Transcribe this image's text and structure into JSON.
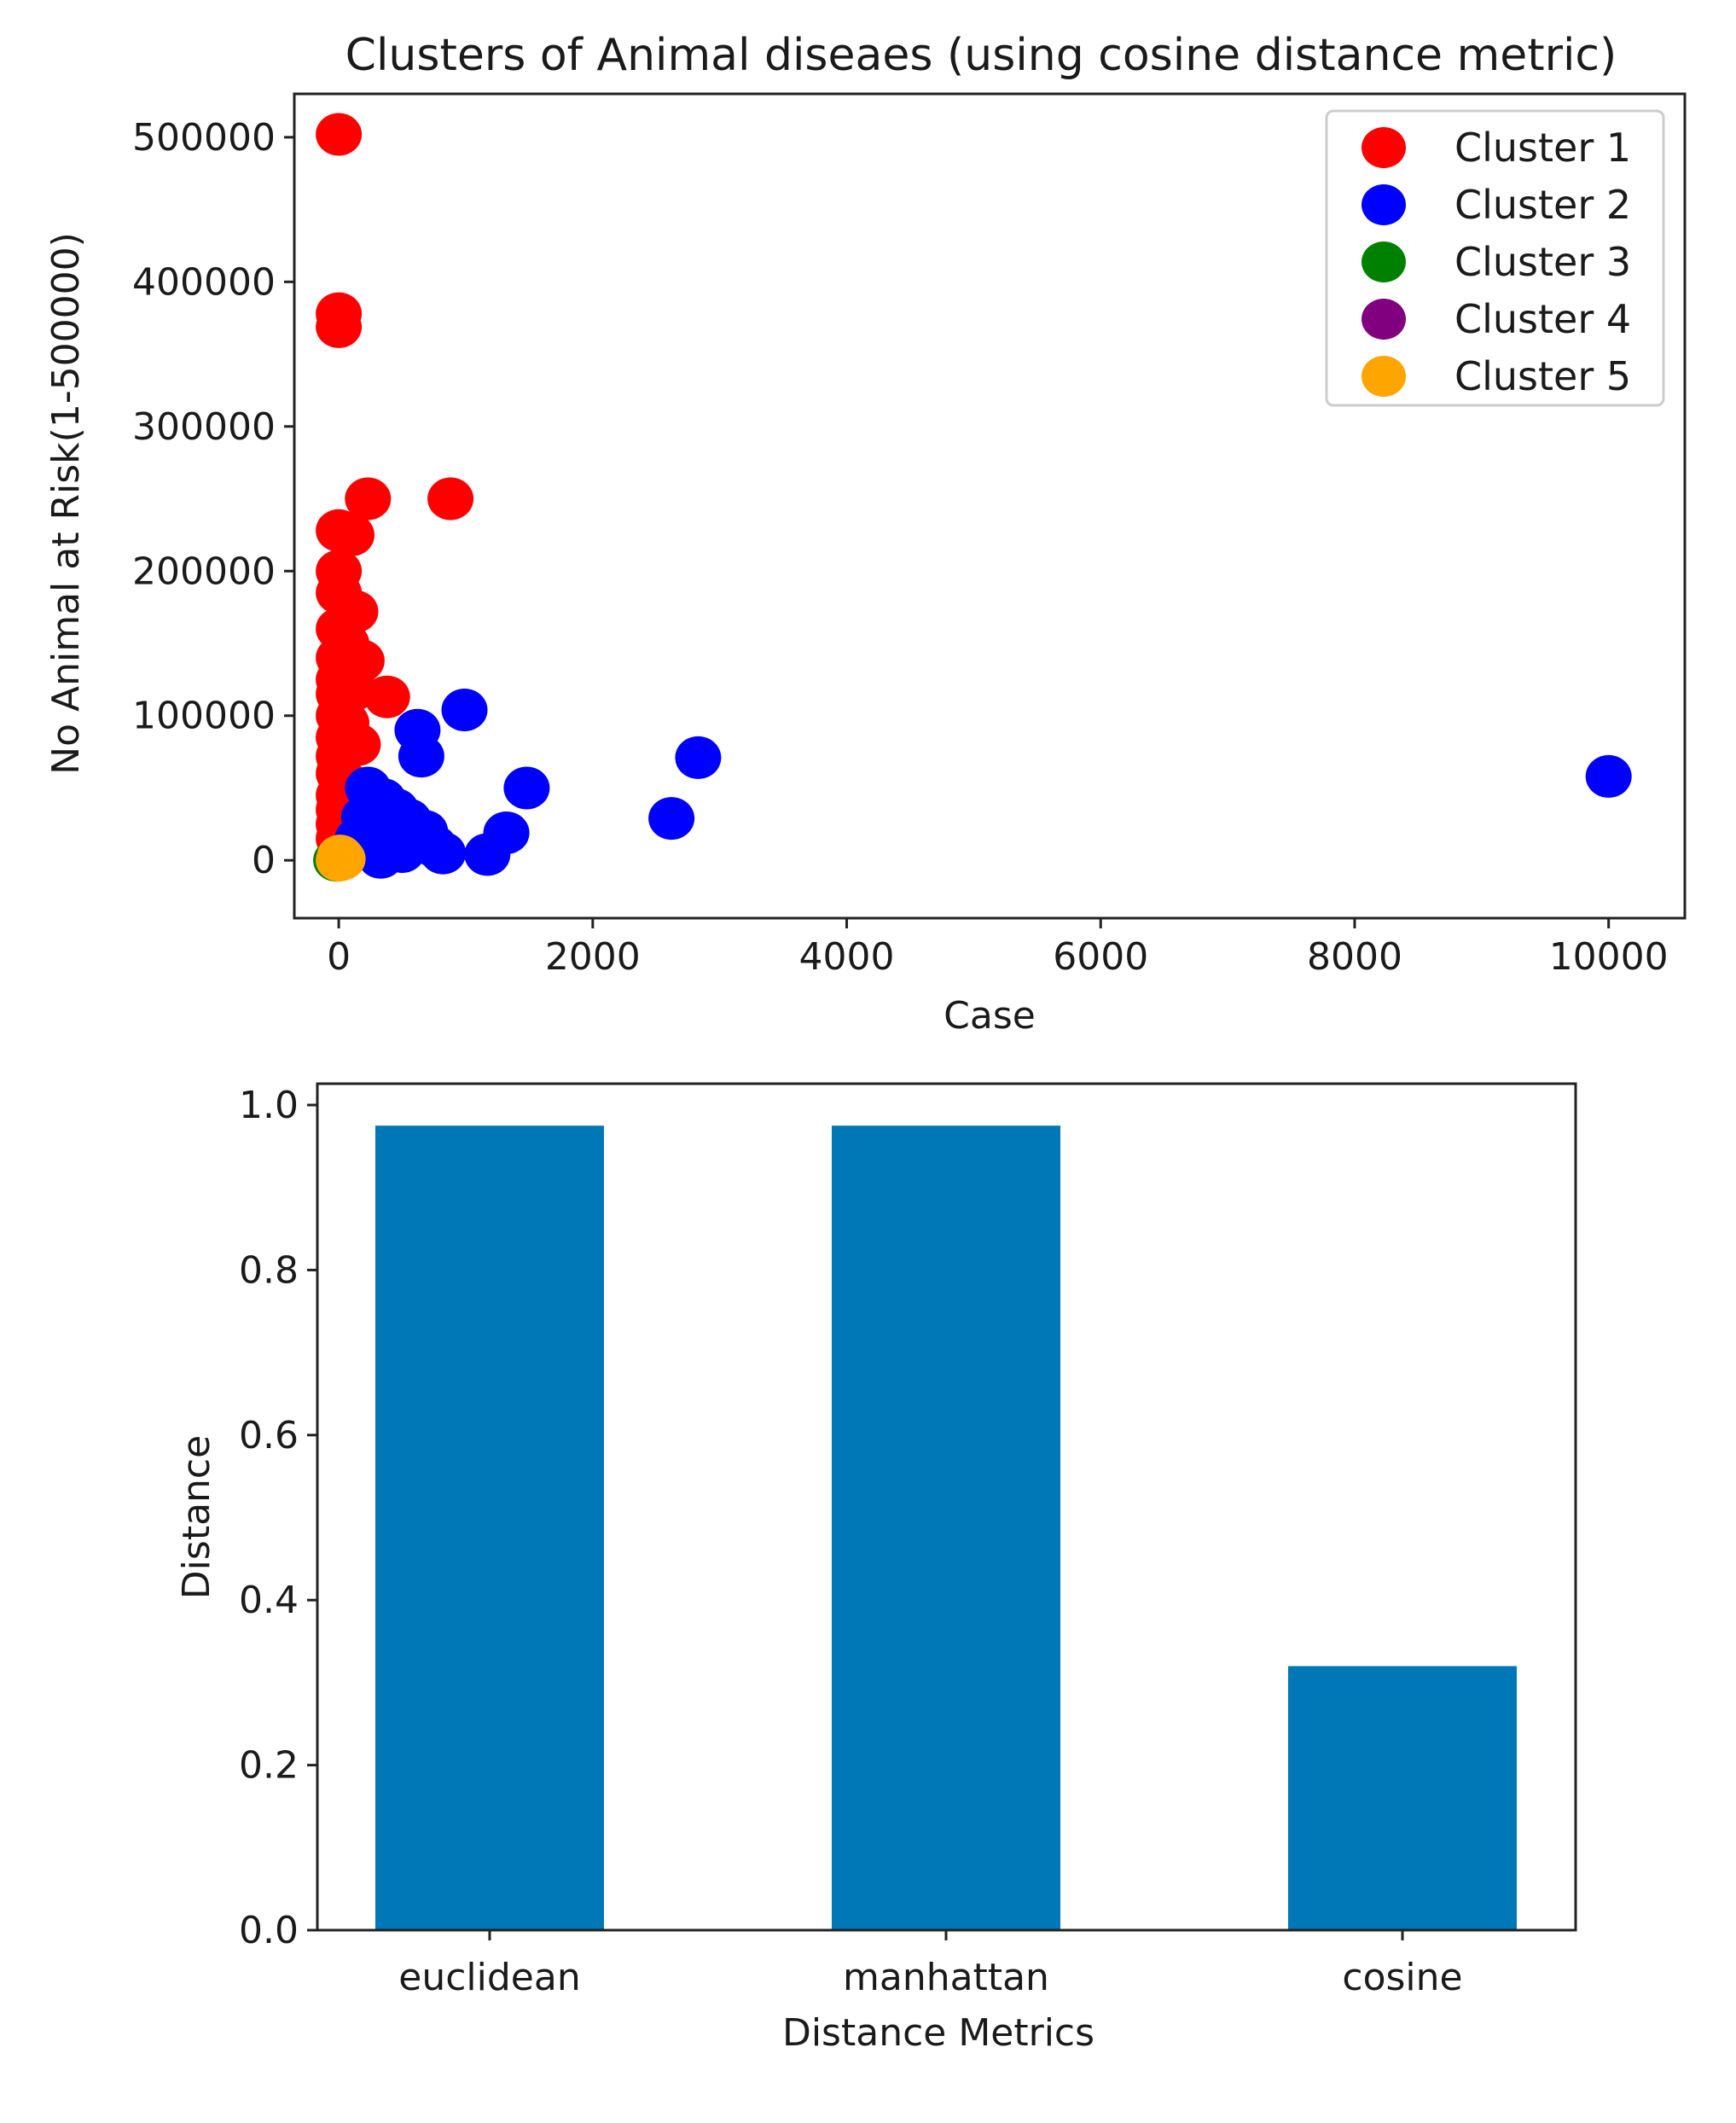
{
  "chart_data": [
    {
      "type": "scatter",
      "title": "Clusters of Animal diseaes (using cosine distance metric)",
      "xlabel": "Case",
      "ylabel": "No Animal at Risk(1-500000)",
      "xlim": [
        -350,
        10600
      ],
      "ylim": [
        -40000,
        530000
      ],
      "xticks": [
        0,
        2000,
        4000,
        6000,
        8000,
        10000
      ],
      "yticks": [
        0,
        100000,
        200000,
        300000,
        400000,
        500000
      ],
      "legend_position": "top-right",
      "series": [
        {
          "name": "Cluster 1",
          "color": "#ff0000",
          "points": [
            [
              0,
              502000
            ],
            [
              0,
              378000
            ],
            [
              0,
              369000
            ],
            [
              230,
              250000
            ],
            [
              880,
              250000
            ],
            [
              0,
              228000
            ],
            [
              100,
              225000
            ],
            [
              0,
              200000
            ],
            [
              0,
              185000
            ],
            [
              130,
              172000
            ],
            [
              0,
              160000
            ],
            [
              60,
              150000
            ],
            [
              0,
              140000
            ],
            [
              180,
              138000
            ],
            [
              0,
              125000
            ],
            [
              0,
              115000
            ],
            [
              120,
              118000
            ],
            [
              380,
              113000
            ],
            [
              0,
              100000
            ],
            [
              60,
              95000
            ],
            [
              0,
              85000
            ],
            [
              150,
              80000
            ],
            [
              0,
              72000
            ],
            [
              0,
              60000
            ],
            [
              40,
              55000
            ],
            [
              0,
              45000
            ],
            [
              0,
              35000
            ],
            [
              0,
              25000
            ],
            [
              0,
              15000
            ]
          ]
        },
        {
          "name": "Cluster 2",
          "color": "#0000ff",
          "points": [
            [
              990,
              104000
            ],
            [
              620,
              90000
            ],
            [
              650,
              72000
            ],
            [
              2830,
              71000
            ],
            [
              10000,
              58000
            ],
            [
              1480,
              50000
            ],
            [
              230,
              50000
            ],
            [
              350,
              42000
            ],
            [
              450,
              35000
            ],
            [
              200,
              30000
            ],
            [
              2620,
              29000
            ],
            [
              550,
              28000
            ],
            [
              280,
              22000
            ],
            [
              680,
              20000
            ],
            [
              1320,
              19000
            ],
            [
              150,
              15000
            ],
            [
              400,
              12000
            ],
            [
              750,
              10000
            ],
            [
              500,
              6000
            ],
            [
              820,
              5000
            ],
            [
              1170,
              4000
            ],
            [
              330,
              2000
            ]
          ]
        },
        {
          "name": "Cluster 3",
          "color": "#008000",
          "points": [
            [
              -20,
              0
            ]
          ]
        },
        {
          "name": "Cluster 4",
          "color": "#800080",
          "points": []
        },
        {
          "name": "Cluster 5",
          "color": "#ffa500",
          "points": [
            [
              10,
              3000
            ],
            [
              30,
              1000
            ],
            [
              0,
              0
            ],
            [
              20,
              2000
            ]
          ]
        }
      ]
    },
    {
      "type": "bar",
      "xlabel": "Distance Metrics",
      "ylabel": "Distance",
      "ylim": [
        0,
        1.0
      ],
      "yticks": [
        "0.0",
        "0.2",
        "0.4",
        "0.6",
        "0.8",
        "1.0"
      ],
      "categories": [
        "euclidean",
        "manhattan",
        "cosine"
      ],
      "values": [
        0.975,
        0.975,
        0.32
      ],
      "color": "#0077b6"
    }
  ]
}
